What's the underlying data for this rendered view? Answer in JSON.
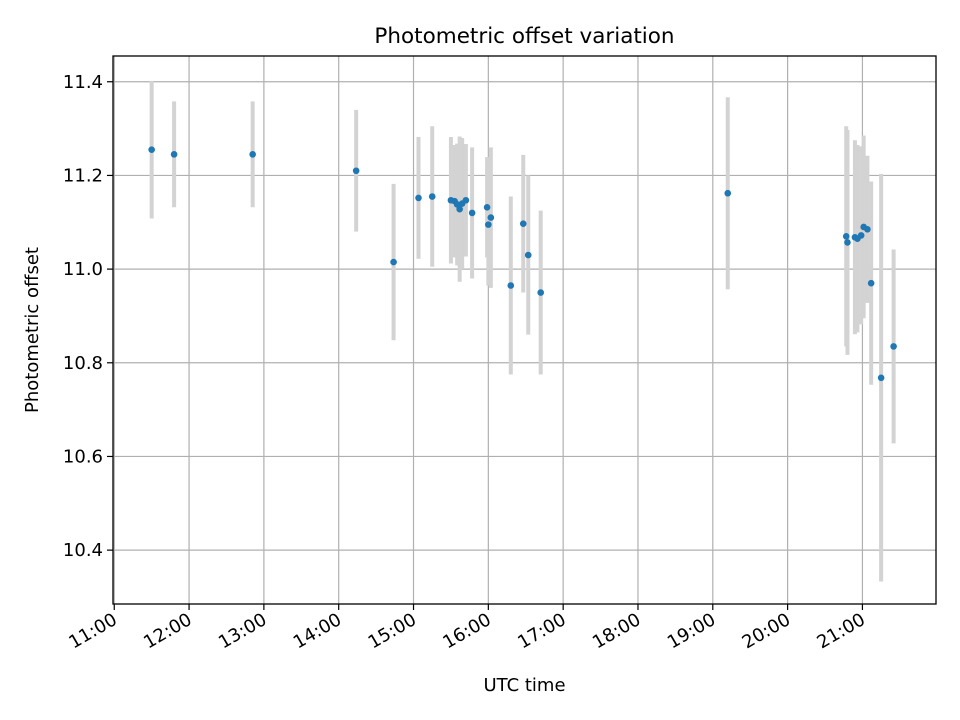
{
  "chart_data": {
    "type": "scatter",
    "title": "Photometric offset variation",
    "xlabel": "UTC time",
    "ylabel": "Photometric offset",
    "xlim": [
      "10:59",
      "21:59"
    ],
    "ylim": [
      10.285,
      11.455
    ],
    "xticks": [
      "11:00",
      "12:00",
      "13:00",
      "14:00",
      "15:00",
      "16:00",
      "17:00",
      "18:00",
      "19:00",
      "20:00",
      "21:00"
    ],
    "yticks": [
      10.4,
      10.6,
      10.8,
      11.0,
      11.2,
      11.4
    ],
    "ytick_labels": [
      "10.4",
      "10.6",
      "10.8",
      "11.0",
      "11.2",
      "11.4"
    ],
    "grid": true,
    "colors": {
      "point": "#1f77b4",
      "errorbar": "#d3d3d3",
      "grid": "#b0b0b0"
    },
    "series": [
      {
        "points": [
          {
            "time": "11:30",
            "y": 11.255,
            "err": 0.147
          },
          {
            "time": "11:48",
            "y": 11.245,
            "err": 0.113
          },
          {
            "time": "12:51",
            "y": 11.245,
            "err": 0.113
          },
          {
            "time": "14:14",
            "y": 11.21,
            "err": 0.13
          },
          {
            "time": "14:44",
            "y": 11.015,
            "err": 0.167
          },
          {
            "time": "15:04",
            "y": 11.152,
            "err": 0.13
          },
          {
            "time": "15:15",
            "y": 11.155,
            "err": 0.15
          },
          {
            "time": "15:30",
            "y": 11.147,
            "err": 0.135
          },
          {
            "time": "15:33",
            "y": 11.145,
            "err": 0.12
          },
          {
            "time": "15:35",
            "y": 11.138,
            "err": 0.13
          },
          {
            "time": "15:37",
            "y": 11.128,
            "err": 0.155
          },
          {
            "time": "15:39",
            "y": 11.14,
            "err": 0.14
          },
          {
            "time": "15:42",
            "y": 11.147,
            "err": 0.12
          },
          {
            "time": "15:47",
            "y": 11.12,
            "err": 0.14
          },
          {
            "time": "15:59",
            "y": 11.132,
            "err": 0.107
          },
          {
            "time": "16:00",
            "y": 11.095,
            "err": 0.13
          },
          {
            "time": "16:02",
            "y": 11.11,
            "err": 0.15
          },
          {
            "time": "16:18",
            "y": 10.965,
            "err": 0.19
          },
          {
            "time": "16:28",
            "y": 11.097,
            "err": 0.147
          },
          {
            "time": "16:32",
            "y": 11.03,
            "err": 0.17
          },
          {
            "time": "16:42",
            "y": 10.95,
            "err": 0.175
          },
          {
            "time": "19:12",
            "y": 11.162,
            "err": 0.205
          },
          {
            "time": "20:47",
            "y": 11.07,
            "err": 0.235
          },
          {
            "time": "20:48",
            "y": 11.057,
            "err": 0.24
          },
          {
            "time": "20:54",
            "y": 11.068,
            "err": 0.207
          },
          {
            "time": "20:56",
            "y": 11.065,
            "err": 0.2
          },
          {
            "time": "20:59",
            "y": 11.072,
            "err": 0.19
          },
          {
            "time": "21:01",
            "y": 11.09,
            "err": 0.195
          },
          {
            "time": "21:04",
            "y": 11.085,
            "err": 0.157
          },
          {
            "time": "21:07",
            "y": 10.97,
            "err": 0.217
          },
          {
            "time": "21:15",
            "y": 10.768,
            "err": 0.435
          },
          {
            "time": "21:25",
            "y": 10.835,
            "err": 0.207
          }
        ]
      }
    ]
  }
}
